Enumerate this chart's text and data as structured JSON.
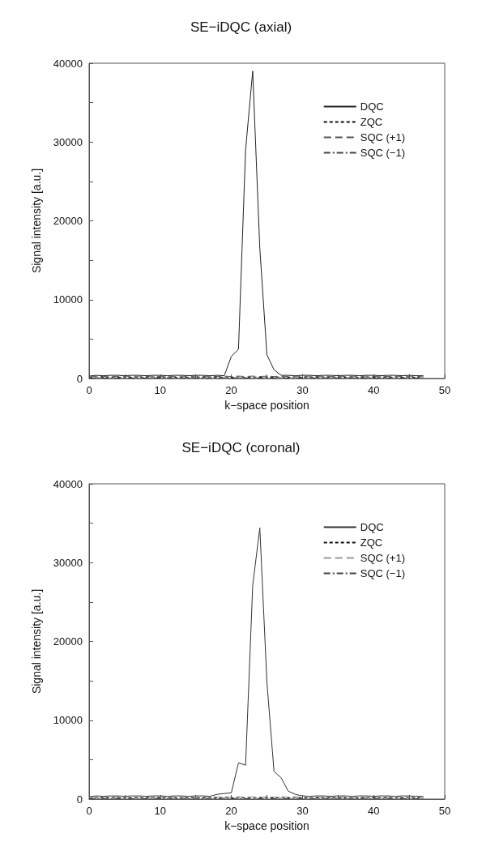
{
  "chart_data": [
    {
      "type": "line",
      "title": "SE−iDQC (axial)",
      "xlabel": "k−space position",
      "ylabel": "Signal intensity [a.u.]",
      "x": [
        0,
        1,
        2,
        3,
        4,
        5,
        6,
        7,
        8,
        9,
        10,
        11,
        12,
        13,
        14,
        15,
        16,
        17,
        18,
        19,
        20,
        21,
        22,
        23,
        24,
        25,
        26,
        27,
        28,
        29,
        30,
        31,
        32,
        33,
        34,
        35,
        36,
        37,
        38,
        39,
        40,
        41,
        42,
        43,
        44,
        45,
        46,
        47
      ],
      "xlim": [
        0,
        50
      ],
      "xticks": [
        0,
        {
          "value": 5,
          "label": null
        },
        10,
        {
          "value": 15,
          "label": null
        },
        20,
        {
          "value": 25,
          "label": null
        },
        30,
        {
          "value": 35,
          "label": null
        },
        40,
        {
          "value": 45,
          "label": null
        },
        50
      ],
      "ylim": [
        0,
        40000
      ],
      "yticks": [
        0,
        {
          "value": 5000,
          "label": null
        },
        10000,
        {
          "value": 15000,
          "label": null
        },
        20000,
        {
          "value": 25000,
          "label": null
        },
        30000,
        {
          "value": 35000,
          "label": null
        },
        40000
      ],
      "grid": false,
      "legend": "top right",
      "marker": "none",
      "series": [
        {
          "name": "DQC",
          "color": "#222222",
          "line_style": "solid",
          "values": [
            300,
            400,
            350,
            400,
            400,
            350,
            400,
            400,
            350,
            400,
            400,
            350,
            400,
            400,
            350,
            400,
            400,
            350,
            400,
            350,
            2800,
            3700,
            29000,
            39000,
            16500,
            3000,
            1100,
            400,
            400,
            350,
            400,
            400,
            350,
            400,
            400,
            350,
            400,
            400,
            350,
            400,
            400,
            350,
            400,
            400,
            350,
            400,
            350,
            350
          ]
        },
        {
          "name": "ZQC",
          "color": "#111111",
          "line_style": "dotted",
          "values": [
            100,
            200,
            150,
            200,
            150,
            200,
            150,
            200,
            150,
            200,
            150,
            200,
            150,
            200,
            150,
            200,
            150,
            200,
            150,
            200,
            150,
            200,
            150,
            200,
            150,
            200,
            150,
            200,
            150,
            200,
            150,
            200,
            150,
            200,
            150,
            200,
            150,
            200,
            150,
            200,
            150,
            200,
            150,
            200,
            150,
            200,
            150,
            200
          ]
        },
        {
          "name": "SQC (+1)",
          "color": "#555555",
          "line_style": "dashed",
          "values": [
            200,
            300,
            250,
            300,
            250,
            300,
            250,
            300,
            250,
            300,
            250,
            300,
            250,
            300,
            250,
            300,
            250,
            300,
            250,
            300,
            250,
            300,
            250,
            300,
            250,
            300,
            250,
            300,
            250,
            300,
            250,
            300,
            250,
            300,
            250,
            300,
            250,
            300,
            250,
            300,
            250,
            300,
            250,
            300,
            250,
            300,
            250,
            300
          ]
        },
        {
          "name": "SQC (−1)",
          "color": "#444444",
          "line_style": "dashdot",
          "values": [
            0,
            100,
            50,
            100,
            50,
            100,
            50,
            100,
            50,
            100,
            50,
            100,
            50,
            100,
            50,
            100,
            50,
            100,
            50,
            100,
            50,
            100,
            50,
            100,
            50,
            100,
            50,
            100,
            50,
            100,
            50,
            100,
            50,
            100,
            50,
            100,
            50,
            100,
            50,
            100,
            50,
            100,
            50,
            100,
            50,
            100,
            50,
            100
          ]
        }
      ]
    },
    {
      "type": "line",
      "title": "SE−iDQC (coronal)",
      "xlabel": "k−space position",
      "ylabel": "Signal intensity [a.u.]",
      "x": [
        0,
        1,
        2,
        3,
        4,
        5,
        6,
        7,
        8,
        9,
        10,
        11,
        12,
        13,
        14,
        15,
        16,
        17,
        18,
        19,
        20,
        21,
        22,
        23,
        24,
        25,
        26,
        27,
        28,
        29,
        30,
        31,
        32,
        33,
        34,
        35,
        36,
        37,
        38,
        39,
        40,
        41,
        42,
        43,
        44,
        45,
        46,
        47
      ],
      "xlim": [
        0,
        50
      ],
      "xticks": [
        0,
        {
          "value": 5,
          "label": null
        },
        10,
        {
          "value": 15,
          "label": null
        },
        20,
        {
          "value": 25,
          "label": null
        },
        30,
        {
          "value": 35,
          "label": null
        },
        40,
        {
          "value": 45,
          "label": null
        },
        50
      ],
      "ylim": [
        0,
        40000
      ],
      "yticks": [
        0,
        {
          "value": 5000,
          "label": null
        },
        10000,
        {
          "value": 15000,
          "label": null
        },
        20000,
        {
          "value": 25000,
          "label": null
        },
        30000,
        {
          "value": 35000,
          "label": null
        },
        40000
      ],
      "grid": false,
      "legend": "top right",
      "marker": "none",
      "series": [
        {
          "name": "DQC",
          "color": "#333333",
          "line_style": "solid",
          "values": [
            300,
            400,
            350,
            400,
            400,
            350,
            400,
            400,
            350,
            400,
            400,
            350,
            400,
            400,
            350,
            400,
            400,
            350,
            600,
            700,
            800,
            4600,
            4300,
            27100,
            34400,
            14800,
            3500,
            2700,
            1000,
            600,
            400,
            350,
            400,
            400,
            350,
            400,
            400,
            350,
            400,
            400,
            350,
            400,
            400,
            350,
            400,
            400,
            350,
            350
          ]
        },
        {
          "name": "ZQC",
          "color": "#111111",
          "line_style": "dotted",
          "values": [
            100,
            200,
            150,
            200,
            150,
            200,
            150,
            200,
            150,
            200,
            150,
            200,
            150,
            200,
            150,
            200,
            150,
            200,
            150,
            200,
            150,
            200,
            150,
            200,
            150,
            200,
            150,
            200,
            150,
            200,
            150,
            200,
            150,
            200,
            150,
            200,
            150,
            200,
            150,
            200,
            150,
            200,
            150,
            200,
            150,
            200,
            150,
            200
          ]
        },
        {
          "name": "SQC (+1)",
          "color": "#999999",
          "line_style": "dashed",
          "values": [
            200,
            300,
            250,
            300,
            250,
            300,
            250,
            300,
            250,
            300,
            250,
            300,
            250,
            300,
            250,
            300,
            250,
            300,
            250,
            300,
            250,
            300,
            250,
            300,
            250,
            300,
            250,
            300,
            250,
            300,
            250,
            300,
            250,
            300,
            250,
            300,
            250,
            300,
            250,
            300,
            250,
            300,
            250,
            300,
            250,
            300,
            250,
            300
          ]
        },
        {
          "name": "SQC (−1)",
          "color": "#444444",
          "line_style": "dashdot",
          "values": [
            0,
            100,
            50,
            100,
            50,
            100,
            50,
            100,
            50,
            100,
            50,
            100,
            50,
            100,
            50,
            100,
            50,
            100,
            50,
            100,
            50,
            100,
            50,
            100,
            50,
            100,
            50,
            100,
            50,
            100,
            50,
            100,
            50,
            100,
            50,
            100,
            50,
            100,
            50,
            100,
            50,
            100,
            50,
            100,
            50,
            100,
            50,
            100
          ]
        }
      ]
    }
  ]
}
